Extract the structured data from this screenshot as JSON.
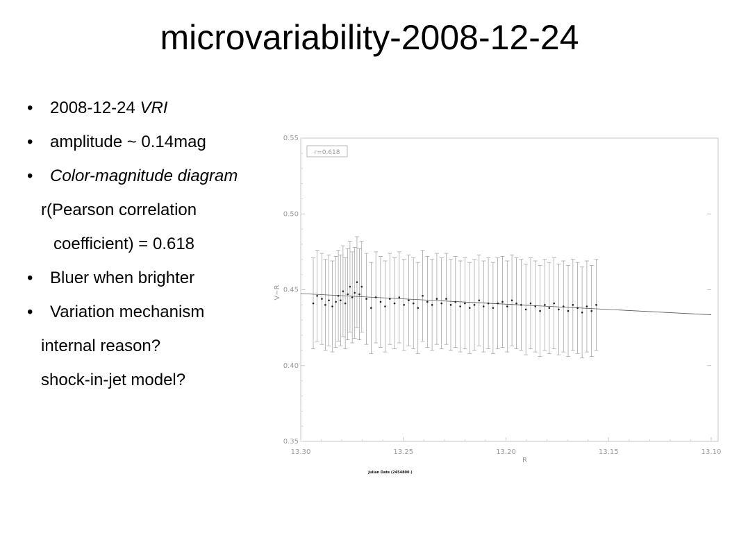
{
  "slide": {
    "title": "microvariability-2008-12-24",
    "bullets": {
      "b1_date": "2008-12-24",
      "b1_bands": "VRI",
      "b2": "amplitude ~ 0.14mag",
      "b3": "Color-magnitude diagram",
      "b3_l2": "r(Pearson correlation",
      "b3_l3": "coefficient) = 0.618",
      "b4": "Bluer when brighter",
      "b5": "Variation mechanism",
      "b5_l2": "internal reason?",
      "b5_l3": "shock-in-jet model?"
    },
    "bullet_symbol": "•"
  },
  "chart_data": {
    "type": "scatter",
    "xlabel": "R",
    "ylabel": "V−R",
    "xlim": [
      13.3,
      13.1
    ],
    "ylim": [
      0.35,
      0.55
    ],
    "x_reversed": true,
    "x_ticks": [
      "13.30",
      "13.25",
      "13.20",
      "13.15",
      "13.10"
    ],
    "y_ticks": [
      "0.35",
      "0.40",
      "0.45",
      "0.50",
      "0.55"
    ],
    "annotation": "r=0.618",
    "fit_line": {
      "x": [
        13.3,
        13.1
      ],
      "y": [
        0.4475,
        0.4335
      ]
    },
    "error_bar_halfwidth_mag": 0.03,
    "secondary_axis_label": "Julian Date (2454800.)",
    "secondary_ticks": [
      "",
      "",
      "",
      "",
      "",
      ""
    ],
    "points": [
      {
        "x": 13.2939,
        "y": 0.441
      },
      {
        "x": 13.292,
        "y": 0.446
      },
      {
        "x": 13.2897,
        "y": 0.444
      },
      {
        "x": 13.288,
        "y": 0.44
      },
      {
        "x": 13.2863,
        "y": 0.443
      },
      {
        "x": 13.2846,
        "y": 0.439
      },
      {
        "x": 13.2829,
        "y": 0.442
      },
      {
        "x": 13.2817,
        "y": 0.446
      },
      {
        "x": 13.2806,
        "y": 0.443
      },
      {
        "x": 13.2794,
        "y": 0.449
      },
      {
        "x": 13.2783,
        "y": 0.441
      },
      {
        "x": 13.2771,
        "y": 0.447
      },
      {
        "x": 13.276,
        "y": 0.452
      },
      {
        "x": 13.2749,
        "y": 0.445
      },
      {
        "x": 13.2737,
        "y": 0.448
      },
      {
        "x": 13.2726,
        "y": 0.455
      },
      {
        "x": 13.2714,
        "y": 0.447
      },
      {
        "x": 13.2703,
        "y": 0.452
      },
      {
        "x": 13.268,
        "y": 0.444
      },
      {
        "x": 13.2657,
        "y": 0.438
      },
      {
        "x": 13.2634,
        "y": 0.445
      },
      {
        "x": 13.2611,
        "y": 0.442
      },
      {
        "x": 13.2589,
        "y": 0.439
      },
      {
        "x": 13.2566,
        "y": 0.444
      },
      {
        "x": 13.2543,
        "y": 0.441
      },
      {
        "x": 13.252,
        "y": 0.445
      },
      {
        "x": 13.2497,
        "y": 0.44
      },
      {
        "x": 13.2474,
        "y": 0.443
      },
      {
        "x": 13.2451,
        "y": 0.441
      },
      {
        "x": 13.2429,
        "y": 0.438
      },
      {
        "x": 13.2406,
        "y": 0.446
      },
      {
        "x": 13.2383,
        "y": 0.442
      },
      {
        "x": 13.236,
        "y": 0.44
      },
      {
        "x": 13.2337,
        "y": 0.444
      },
      {
        "x": 13.2314,
        "y": 0.441
      },
      {
        "x": 13.2291,
        "y": 0.444
      },
      {
        "x": 13.2269,
        "y": 0.44
      },
      {
        "x": 13.2246,
        "y": 0.442
      },
      {
        "x": 13.2223,
        "y": 0.439
      },
      {
        "x": 13.22,
        "y": 0.441
      },
      {
        "x": 13.2177,
        "y": 0.438
      },
      {
        "x": 13.2154,
        "y": 0.44
      },
      {
        "x": 13.2131,
        "y": 0.443
      },
      {
        "x": 13.2109,
        "y": 0.439
      },
      {
        "x": 13.2086,
        "y": 0.441
      },
      {
        "x": 13.2063,
        "y": 0.438
      },
      {
        "x": 13.204,
        "y": 0.441
      },
      {
        "x": 13.2017,
        "y": 0.442
      },
      {
        "x": 13.1994,
        "y": 0.439
      },
      {
        "x": 13.1971,
        "y": 0.443
      },
      {
        "x": 13.1949,
        "y": 0.441
      },
      {
        "x": 13.1926,
        "y": 0.44
      },
      {
        "x": 13.1903,
        "y": 0.437
      },
      {
        "x": 13.188,
        "y": 0.441
      },
      {
        "x": 13.1857,
        "y": 0.439
      },
      {
        "x": 13.1834,
        "y": 0.436
      },
      {
        "x": 13.1811,
        "y": 0.44
      },
      {
        "x": 13.1789,
        "y": 0.438
      },
      {
        "x": 13.1766,
        "y": 0.441
      },
      {
        "x": 13.1743,
        "y": 0.437
      },
      {
        "x": 13.172,
        "y": 0.439
      },
      {
        "x": 13.1697,
        "y": 0.436
      },
      {
        "x": 13.1674,
        "y": 0.44
      },
      {
        "x": 13.1651,
        "y": 0.438
      },
      {
        "x": 13.1629,
        "y": 0.435
      },
      {
        "x": 13.1606,
        "y": 0.439
      },
      {
        "x": 13.1583,
        "y": 0.436
      },
      {
        "x": 13.156,
        "y": 0.44
      }
    ]
  }
}
